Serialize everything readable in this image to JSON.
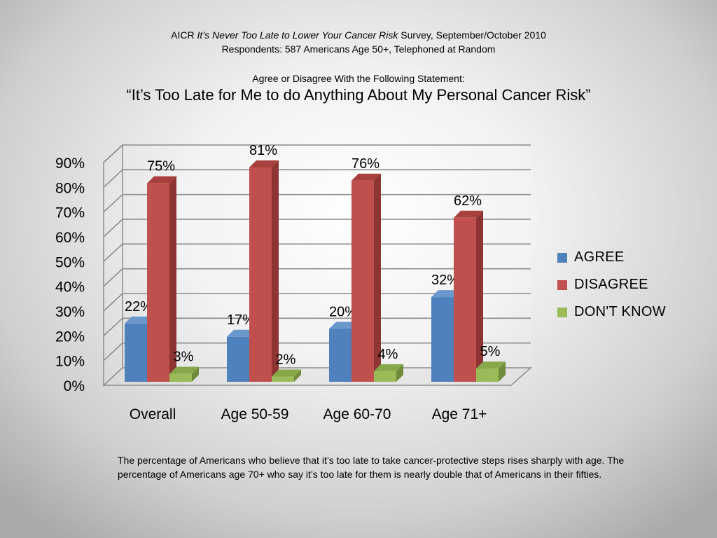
{
  "header": {
    "line1_prefix": "AICR ",
    "line1_italic": "It’s Never Too Late to Lower Your Cancer Risk",
    "line1_suffix": " Survey, September/October 2010",
    "line2": "Respondents: 587 Americans Age 50+, Telephoned at Random",
    "line3": "Agree or Disagree With the Following Statement:",
    "statement": "“It’s Too Late for Me to do Anything About My Personal Cancer Risk”"
  },
  "chart_data": {
    "type": "bar",
    "categories": [
      "Overall",
      "Age 50-59",
      "Age 60-70",
      "Age 71+"
    ],
    "series": [
      {
        "name": "AGREE",
        "values": [
          22,
          17,
          20,
          32
        ],
        "labels": [
          "22%",
          "17%",
          "20%",
          "32%"
        ],
        "color": "#4f81bd",
        "side": "#3b6494",
        "top": "#6a97cc"
      },
      {
        "name": "DISAGREE",
        "values": [
          75,
          81,
          76,
          62
        ],
        "labels": [
          "75%",
          "81%",
          "76%",
          "62%"
        ],
        "color": "#c0504d",
        "side": "#8e3433",
        "top": "#a8403d"
      },
      {
        "name": "DON'T KNOW",
        "values": [
          3,
          2,
          4,
          5
        ],
        "labels": [
          "3%",
          "2%",
          "4%",
          "5%"
        ],
        "color": "#9bbb59",
        "side": "#6f8a3a",
        "top": "#86a84a"
      }
    ],
    "ylim": [
      0,
      90
    ],
    "yticks": [
      "0%",
      "10%",
      "20%",
      "30%",
      "40%",
      "50%",
      "60%",
      "70%",
      "80%",
      "90%"
    ],
    "grid": true,
    "legend_position": "right"
  },
  "footnote": "The percentage of Americans who believe that it’s too late to take cancer-protective steps rises sharply with age. The percentage of Americans age 70+ who say it’s too late for them is nearly double that of Americans in their fifties."
}
